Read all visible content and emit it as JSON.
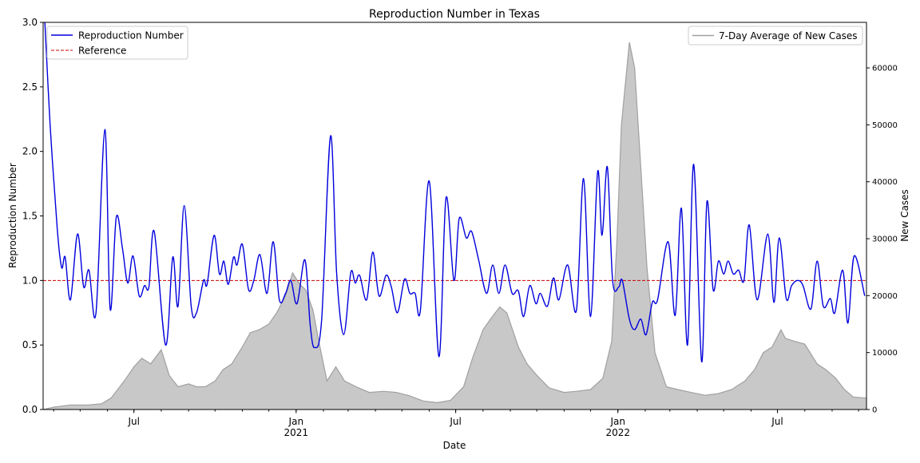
{
  "chart_data": {
    "type": "line",
    "title": "Reproduction Number in Texas",
    "xlabel": "Date",
    "ylabel_left": "Reproduction Number",
    "ylabel_right": "New Cases",
    "xlim": [
      "2020-03-20",
      "2022-10-10"
    ],
    "ylim_left": [
      0,
      3.0
    ],
    "ylim_right": [
      0,
      68000
    ],
    "left_ticks": [
      "0.0",
      "0.5",
      "1.0",
      "1.5",
      "2.0",
      "2.5",
      "3.0"
    ],
    "right_ticks": [
      "0",
      "10000",
      "20000",
      "30000",
      "40000",
      "50000",
      "60000"
    ],
    "x_ticks": [
      {
        "date": "2020-07-01",
        "label": "Jul",
        "label2": ""
      },
      {
        "date": "2021-01-01",
        "label": "Jan",
        "label2": "2021"
      },
      {
        "date": "2021-07-01",
        "label": "Jul",
        "label2": ""
      },
      {
        "date": "2022-01-01",
        "label": "Jan",
        "label2": "2022"
      },
      {
        "date": "2022-07-01",
        "label": "Jul",
        "label2": ""
      }
    ],
    "reference_value": 1.0,
    "legend_left": {
      "placement": "top-left",
      "entries": [
        "Reproduction Number",
        "Reference"
      ]
    },
    "legend_right": {
      "placement": "top-right",
      "entries": [
        "7-Day Average of New Cases"
      ]
    },
    "colors": {
      "rt": "#0000dd",
      "reference": "#cc0000",
      "cases_fill": "#c8c8c8",
      "cases_line": "#a0a0a0"
    },
    "series": [
      {
        "name": "Reproduction Number",
        "axis": "left",
        "points": [
          [
            "2020-03-22",
            3.0
          ],
          [
            "2020-03-28",
            2.2
          ],
          [
            "2020-04-05",
            1.4
          ],
          [
            "2020-04-10",
            1.1
          ],
          [
            "2020-04-14",
            1.18
          ],
          [
            "2020-04-20",
            0.85
          ],
          [
            "2020-04-28",
            1.36
          ],
          [
            "2020-05-05",
            0.95
          ],
          [
            "2020-05-11",
            1.08
          ],
          [
            "2020-05-19",
            0.75
          ],
          [
            "2020-05-29",
            2.17
          ],
          [
            "2020-06-04",
            0.78
          ],
          [
            "2020-06-11",
            1.49
          ],
          [
            "2020-06-18",
            1.25
          ],
          [
            "2020-06-24",
            0.98
          ],
          [
            "2020-06-30",
            1.19
          ],
          [
            "2020-07-07",
            0.88
          ],
          [
            "2020-07-13",
            0.96
          ],
          [
            "2020-07-18",
            0.95
          ],
          [
            "2020-07-24",
            1.38
          ],
          [
            "2020-08-06",
            0.5
          ],
          [
            "2020-08-14",
            1.18
          ],
          [
            "2020-08-20",
            0.8
          ],
          [
            "2020-08-27",
            1.58
          ],
          [
            "2020-09-04",
            0.8
          ],
          [
            "2020-09-10",
            0.75
          ],
          [
            "2020-09-18",
            1.0
          ],
          [
            "2020-09-22",
            0.97
          ],
          [
            "2020-09-30",
            1.35
          ],
          [
            "2020-10-06",
            1.05
          ],
          [
            "2020-10-11",
            1.15
          ],
          [
            "2020-10-16",
            0.97
          ],
          [
            "2020-10-22",
            1.18
          ],
          [
            "2020-10-26",
            1.12
          ],
          [
            "2020-11-01",
            1.28
          ],
          [
            "2020-11-08",
            0.93
          ],
          [
            "2020-11-14",
            1.0
          ],
          [
            "2020-11-21",
            1.2
          ],
          [
            "2020-11-29",
            0.9
          ],
          [
            "2020-12-06",
            1.3
          ],
          [
            "2020-12-13",
            0.85
          ],
          [
            "2020-12-20",
            0.9
          ],
          [
            "2020-12-26",
            1.0
          ],
          [
            "2021-01-02",
            0.82
          ],
          [
            "2021-01-11",
            1.16
          ],
          [
            "2021-01-17",
            0.65
          ],
          [
            "2021-01-22",
            0.48
          ],
          [
            "2021-01-30",
            0.7
          ],
          [
            "2021-02-09",
            2.12
          ],
          [
            "2021-02-16",
            1.05
          ],
          [
            "2021-02-24",
            0.58
          ],
          [
            "2021-03-04",
            1.06
          ],
          [
            "2021-03-09",
            0.98
          ],
          [
            "2021-03-14",
            1.04
          ],
          [
            "2021-03-22",
            0.85
          ],
          [
            "2021-03-29",
            1.22
          ],
          [
            "2021-04-05",
            0.88
          ],
          [
            "2021-04-13",
            1.04
          ],
          [
            "2021-04-19",
            0.95
          ],
          [
            "2021-04-26",
            0.75
          ],
          [
            "2021-05-04",
            1.01
          ],
          [
            "2021-05-10",
            0.9
          ],
          [
            "2021-05-16",
            0.9
          ],
          [
            "2021-05-22",
            0.77
          ],
          [
            "2021-06-01",
            1.77
          ],
          [
            "2021-06-12",
            0.41
          ],
          [
            "2021-06-20",
            1.64
          ],
          [
            "2021-06-29",
            1.0
          ],
          [
            "2021-07-05",
            1.48
          ],
          [
            "2021-07-13",
            1.33
          ],
          [
            "2021-07-19",
            1.38
          ],
          [
            "2021-07-27",
            1.16
          ],
          [
            "2021-08-05",
            0.9
          ],
          [
            "2021-08-12",
            1.12
          ],
          [
            "2021-08-19",
            0.9
          ],
          [
            "2021-08-26",
            1.12
          ],
          [
            "2021-09-03",
            0.9
          ],
          [
            "2021-09-10",
            0.92
          ],
          [
            "2021-09-16",
            0.72
          ],
          [
            "2021-09-23",
            0.96
          ],
          [
            "2021-09-30",
            0.82
          ],
          [
            "2021-10-05",
            0.9
          ],
          [
            "2021-10-13",
            0.8
          ],
          [
            "2021-10-20",
            1.02
          ],
          [
            "2021-10-26",
            0.85
          ],
          [
            "2021-11-05",
            1.12
          ],
          [
            "2021-11-15",
            0.77
          ],
          [
            "2021-11-23",
            1.79
          ],
          [
            "2021-12-01",
            0.72
          ],
          [
            "2021-12-09",
            1.84
          ],
          [
            "2021-12-14",
            1.35
          ],
          [
            "2021-12-20",
            1.88
          ],
          [
            "2021-12-26",
            1.0
          ],
          [
            "2022-01-02",
            0.95
          ],
          [
            "2022-01-06",
            1.0
          ],
          [
            "2022-01-14",
            0.7
          ],
          [
            "2022-01-20",
            0.62
          ],
          [
            "2022-01-27",
            0.7
          ],
          [
            "2022-02-02",
            0.58
          ],
          [
            "2022-02-09",
            0.83
          ],
          [
            "2022-02-15",
            0.85
          ],
          [
            "2022-02-27",
            1.3
          ],
          [
            "2022-03-07",
            0.73
          ],
          [
            "2022-03-14",
            1.56
          ],
          [
            "2022-03-21",
            0.5
          ],
          [
            "2022-03-28",
            1.9
          ],
          [
            "2022-04-06",
            0.37
          ],
          [
            "2022-04-12",
            1.61
          ],
          [
            "2022-04-19",
            0.93
          ],
          [
            "2022-04-25",
            1.15
          ],
          [
            "2022-05-01",
            1.05
          ],
          [
            "2022-05-06",
            1.15
          ],
          [
            "2022-05-12",
            1.05
          ],
          [
            "2022-05-18",
            1.08
          ],
          [
            "2022-05-24",
            1.0
          ],
          [
            "2022-05-30",
            1.43
          ],
          [
            "2022-06-08",
            0.85
          ],
          [
            "2022-06-20",
            1.36
          ],
          [
            "2022-06-27",
            0.83
          ],
          [
            "2022-07-03",
            1.33
          ],
          [
            "2022-07-11",
            0.86
          ],
          [
            "2022-07-17",
            0.96
          ],
          [
            "2022-07-24",
            1.0
          ],
          [
            "2022-07-30",
            0.96
          ],
          [
            "2022-08-08",
            0.78
          ],
          [
            "2022-08-15",
            1.15
          ],
          [
            "2022-08-22",
            0.8
          ],
          [
            "2022-08-30",
            0.86
          ],
          [
            "2022-09-04",
            0.75
          ],
          [
            "2022-09-13",
            1.08
          ],
          [
            "2022-09-19",
            0.67
          ],
          [
            "2022-09-26",
            1.19
          ],
          [
            "2022-10-08",
            0.88
          ]
        ]
      },
      {
        "name": "7-Day Average of New Cases",
        "axis": "right",
        "points": [
          [
            "2020-03-20",
            0
          ],
          [
            "2020-04-01",
            400
          ],
          [
            "2020-04-20",
            800
          ],
          [
            "2020-05-10",
            800
          ],
          [
            "2020-05-25",
            1000
          ],
          [
            "2020-06-05",
            2000
          ],
          [
            "2020-06-20",
            5000
          ],
          [
            "2020-07-01",
            7500
          ],
          [
            "2020-07-10",
            9000
          ],
          [
            "2020-07-20",
            8000
          ],
          [
            "2020-08-01",
            10500
          ],
          [
            "2020-08-10",
            6000
          ],
          [
            "2020-08-20",
            4000
          ],
          [
            "2020-09-01",
            4500
          ],
          [
            "2020-09-10",
            4000
          ],
          [
            "2020-09-20",
            4000
          ],
          [
            "2020-10-01",
            5000
          ],
          [
            "2020-10-10",
            7000
          ],
          [
            "2020-10-20",
            8000
          ],
          [
            "2020-11-01",
            11000
          ],
          [
            "2020-11-10",
            13500
          ],
          [
            "2020-11-20",
            14000
          ],
          [
            "2020-12-01",
            15000
          ],
          [
            "2020-12-10",
            17000
          ],
          [
            "2020-12-20",
            20000
          ],
          [
            "2020-12-28",
            24000
          ],
          [
            "2021-01-05",
            22000
          ],
          [
            "2021-01-12",
            21000
          ],
          [
            "2021-01-20",
            17500
          ],
          [
            "2021-01-28",
            11000
          ],
          [
            "2021-02-05",
            5000
          ],
          [
            "2021-02-15",
            7500
          ],
          [
            "2021-02-25",
            5000
          ],
          [
            "2021-03-10",
            4000
          ],
          [
            "2021-03-25",
            3000
          ],
          [
            "2021-04-10",
            3200
          ],
          [
            "2021-04-25",
            3000
          ],
          [
            "2021-05-10",
            2400
          ],
          [
            "2021-05-25",
            1500
          ],
          [
            "2021-06-10",
            1200
          ],
          [
            "2021-06-25",
            1600
          ],
          [
            "2021-07-10",
            4000
          ],
          [
            "2021-07-20",
            9000
          ],
          [
            "2021-08-01",
            14000
          ],
          [
            "2021-08-10",
            16000
          ],
          [
            "2021-08-20",
            18000
          ],
          [
            "2021-08-28",
            17000
          ],
          [
            "2021-09-10",
            11000
          ],
          [
            "2021-09-20",
            8000
          ],
          [
            "2021-10-01",
            6000
          ],
          [
            "2021-10-15",
            3800
          ],
          [
            "2021-11-01",
            3000
          ],
          [
            "2021-11-15",
            3200
          ],
          [
            "2021-12-01",
            3500
          ],
          [
            "2021-12-15",
            5500
          ],
          [
            "2021-12-25",
            12000
          ],
          [
            "2021-12-31",
            30000
          ],
          [
            "2022-01-05",
            50000
          ],
          [
            "2022-01-10",
            58000
          ],
          [
            "2022-01-14",
            64500
          ],
          [
            "2022-01-20",
            60000
          ],
          [
            "2022-01-26",
            45000
          ],
          [
            "2022-02-03",
            25000
          ],
          [
            "2022-02-12",
            10000
          ],
          [
            "2022-02-25",
            4000
          ],
          [
            "2022-03-10",
            3500
          ],
          [
            "2022-03-25",
            3000
          ],
          [
            "2022-04-10",
            2500
          ],
          [
            "2022-04-25",
            2800
          ],
          [
            "2022-05-10",
            3500
          ],
          [
            "2022-05-25",
            5000
          ],
          [
            "2022-06-05",
            7000
          ],
          [
            "2022-06-15",
            10000
          ],
          [
            "2022-06-25",
            11000
          ],
          [
            "2022-07-05",
            14000
          ],
          [
            "2022-07-10",
            12500
          ],
          [
            "2022-07-20",
            12000
          ],
          [
            "2022-08-01",
            11500
          ],
          [
            "2022-08-15",
            8000
          ],
          [
            "2022-08-25",
            7000
          ],
          [
            "2022-09-05",
            5500
          ],
          [
            "2022-09-15",
            3500
          ],
          [
            "2022-09-25",
            2200
          ],
          [
            "2022-10-10",
            2000
          ]
        ]
      }
    ]
  }
}
